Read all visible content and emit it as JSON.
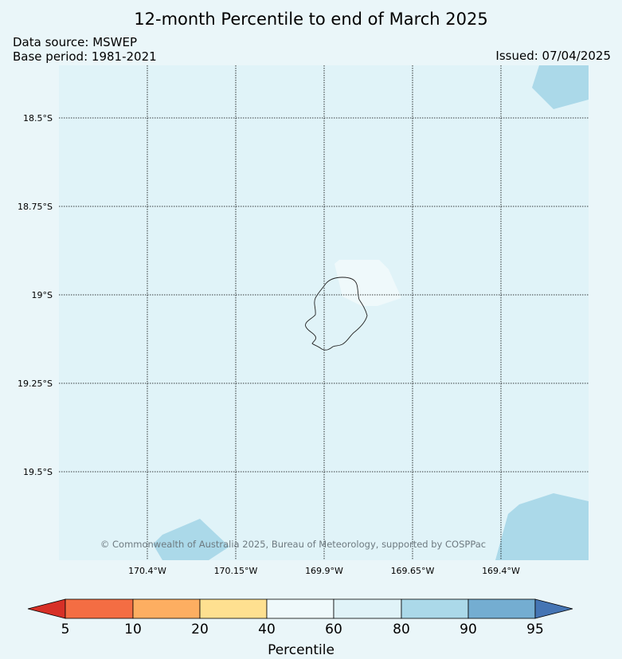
{
  "title": "12-month Percentile to end of March 2025",
  "data_source": "Data source: MSWEP",
  "base_period": "Base period: 1981-2021",
  "issued": "Issued: 07/04/2025",
  "copyright": "© Commonwealth of Australia 2025, Bureau of Meteorology, supported by COSPPac",
  "map": {
    "lat_labels": [
      "18.5°S",
      "18.75°S",
      "19°S",
      "19.25°S",
      "19.5°S"
    ],
    "lon_labels": [
      "170.4°W",
      "170.15°W",
      "169.9°W",
      "169.65°W",
      "169.4°W"
    ],
    "background_color": "#e0f3f8",
    "region_colors": {
      "band_60_80": "#e0f3f8",
      "band_40_60": "#eff9fb",
      "band_80_90": "#abd9e9"
    }
  },
  "colorbar": {
    "title": "Percentile",
    "ticks": [
      "5",
      "10",
      "20",
      "40",
      "60",
      "80",
      "90",
      "95"
    ],
    "colors": [
      "#d73027",
      "#f46d43",
      "#fdae61",
      "#fee090",
      "#eff9fb",
      "#e0f3f8",
      "#abd9e9",
      "#74add1",
      "#4575b4"
    ]
  }
}
